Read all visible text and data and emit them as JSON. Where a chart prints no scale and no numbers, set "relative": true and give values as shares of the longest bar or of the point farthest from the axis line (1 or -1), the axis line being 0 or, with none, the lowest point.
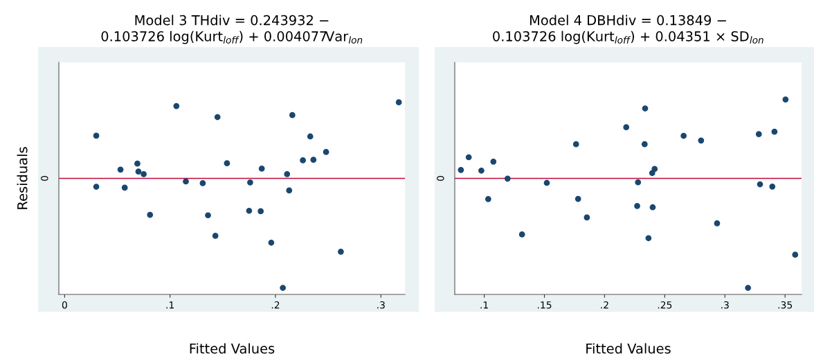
{
  "chart_data": [
    {
      "type": "scatter",
      "title": "Model 3 THdiv = 0.243932 −\n0.103726 log(Kurt$_{loff}$) + 0.004077Var$_{lon}$",
      "xlabel": "Fitted Values",
      "ylabel": "Residuals",
      "relative": true,
      "marker": "circle",
      "legend": false,
      "xlim": [
        -0.0055,
        0.3228
      ],
      "xticks": [
        {
          "value": 0,
          "label": "0"
        },
        {
          "value": 0.1,
          "label": ".1"
        },
        {
          "value": 0.2,
          "label": ".2"
        },
        {
          "value": 0.3,
          "label": ".3"
        }
      ],
      "ref_lines": [
        {
          "axis": "y",
          "value": 0,
          "label": "0",
          "color": "#c10534"
        }
      ],
      "series": [
        {
          "color": "#1a476f",
          "x": [
            0.03,
            0.03,
            0.053,
            0.057,
            0.069,
            0.07,
            0.075,
            0.081,
            0.106,
            0.115,
            0.131,
            0.136,
            0.143,
            0.145,
            0.154,
            0.175,
            0.176,
            0.186,
            0.187,
            0.196,
            0.207,
            0.211,
            0.213,
            0.216,
            0.226,
            0.233,
            0.236,
            0.248,
            0.262,
            0.317
          ],
          "values": [
            0.39,
            -0.076,
            0.08,
            -0.085,
            0.135,
            0.062,
            0.039,
            -0.333,
            0.661,
            -0.028,
            -0.044,
            -0.337,
            -0.525,
            0.56,
            0.138,
            -0.296,
            -0.037,
            -0.3,
            0.089,
            -0.587,
            -1,
            0.039,
            -0.11,
            0.578,
            0.165,
            0.383,
            0.17,
            0.241,
            -0.67,
            0.695
          ]
        }
      ]
    },
    {
      "type": "scatter",
      "title": "Model 4 DBHdiv = 0.13849 −\n0.103726 log(Kurt$_{loff}$) + 0.04351 × SD$_{lon}$",
      "xlabel": "Fitted Values",
      "relative": true,
      "marker": "circle",
      "legend": false,
      "xlim": [
        0.0755,
        0.3637
      ],
      "xticks": [
        {
          "value": 0.1,
          "label": ".1"
        },
        {
          "value": 0.15,
          "label": ".15"
        },
        {
          "value": 0.2,
          "label": ".2"
        },
        {
          "value": 0.25,
          "label": ".25"
        },
        {
          "value": 0.3,
          "label": ".3"
        },
        {
          "value": 0.35,
          "label": ".35"
        }
      ],
      "ref_lines": [
        {
          "axis": "y",
          "value": 0,
          "label": "0",
          "color": "#c10534"
        }
      ],
      "series": [
        {
          "color": "#1a476f",
          "x": [
            0.0806,
            0.0871,
            0.0976,
            0.1033,
            0.1076,
            0.1194,
            0.1314,
            0.152,
            0.1763,
            0.178,
            0.1853,
            0.218,
            0.2271,
            0.2278,
            0.2333,
            0.2337,
            0.2365,
            0.2396,
            0.24,
            0.2416,
            0.2657,
            0.2802,
            0.2935,
            0.3192,
            0.3282,
            0.3292,
            0.3394,
            0.3412,
            0.3504,
            0.3584
          ],
          "values": [
            0.077,
            0.193,
            0.071,
            -0.189,
            0.153,
            -0.002,
            -0.512,
            -0.041,
            0.312,
            -0.187,
            -0.357,
            0.467,
            -0.252,
            -0.036,
            0.312,
            0.639,
            -0.546,
            0.049,
            -0.264,
            0.086,
            0.389,
            0.346,
            -0.411,
            -1,
            0.404,
            -0.054,
            -0.075,
            0.426,
            0.721,
            -0.697
          ]
        }
      ]
    }
  ]
}
